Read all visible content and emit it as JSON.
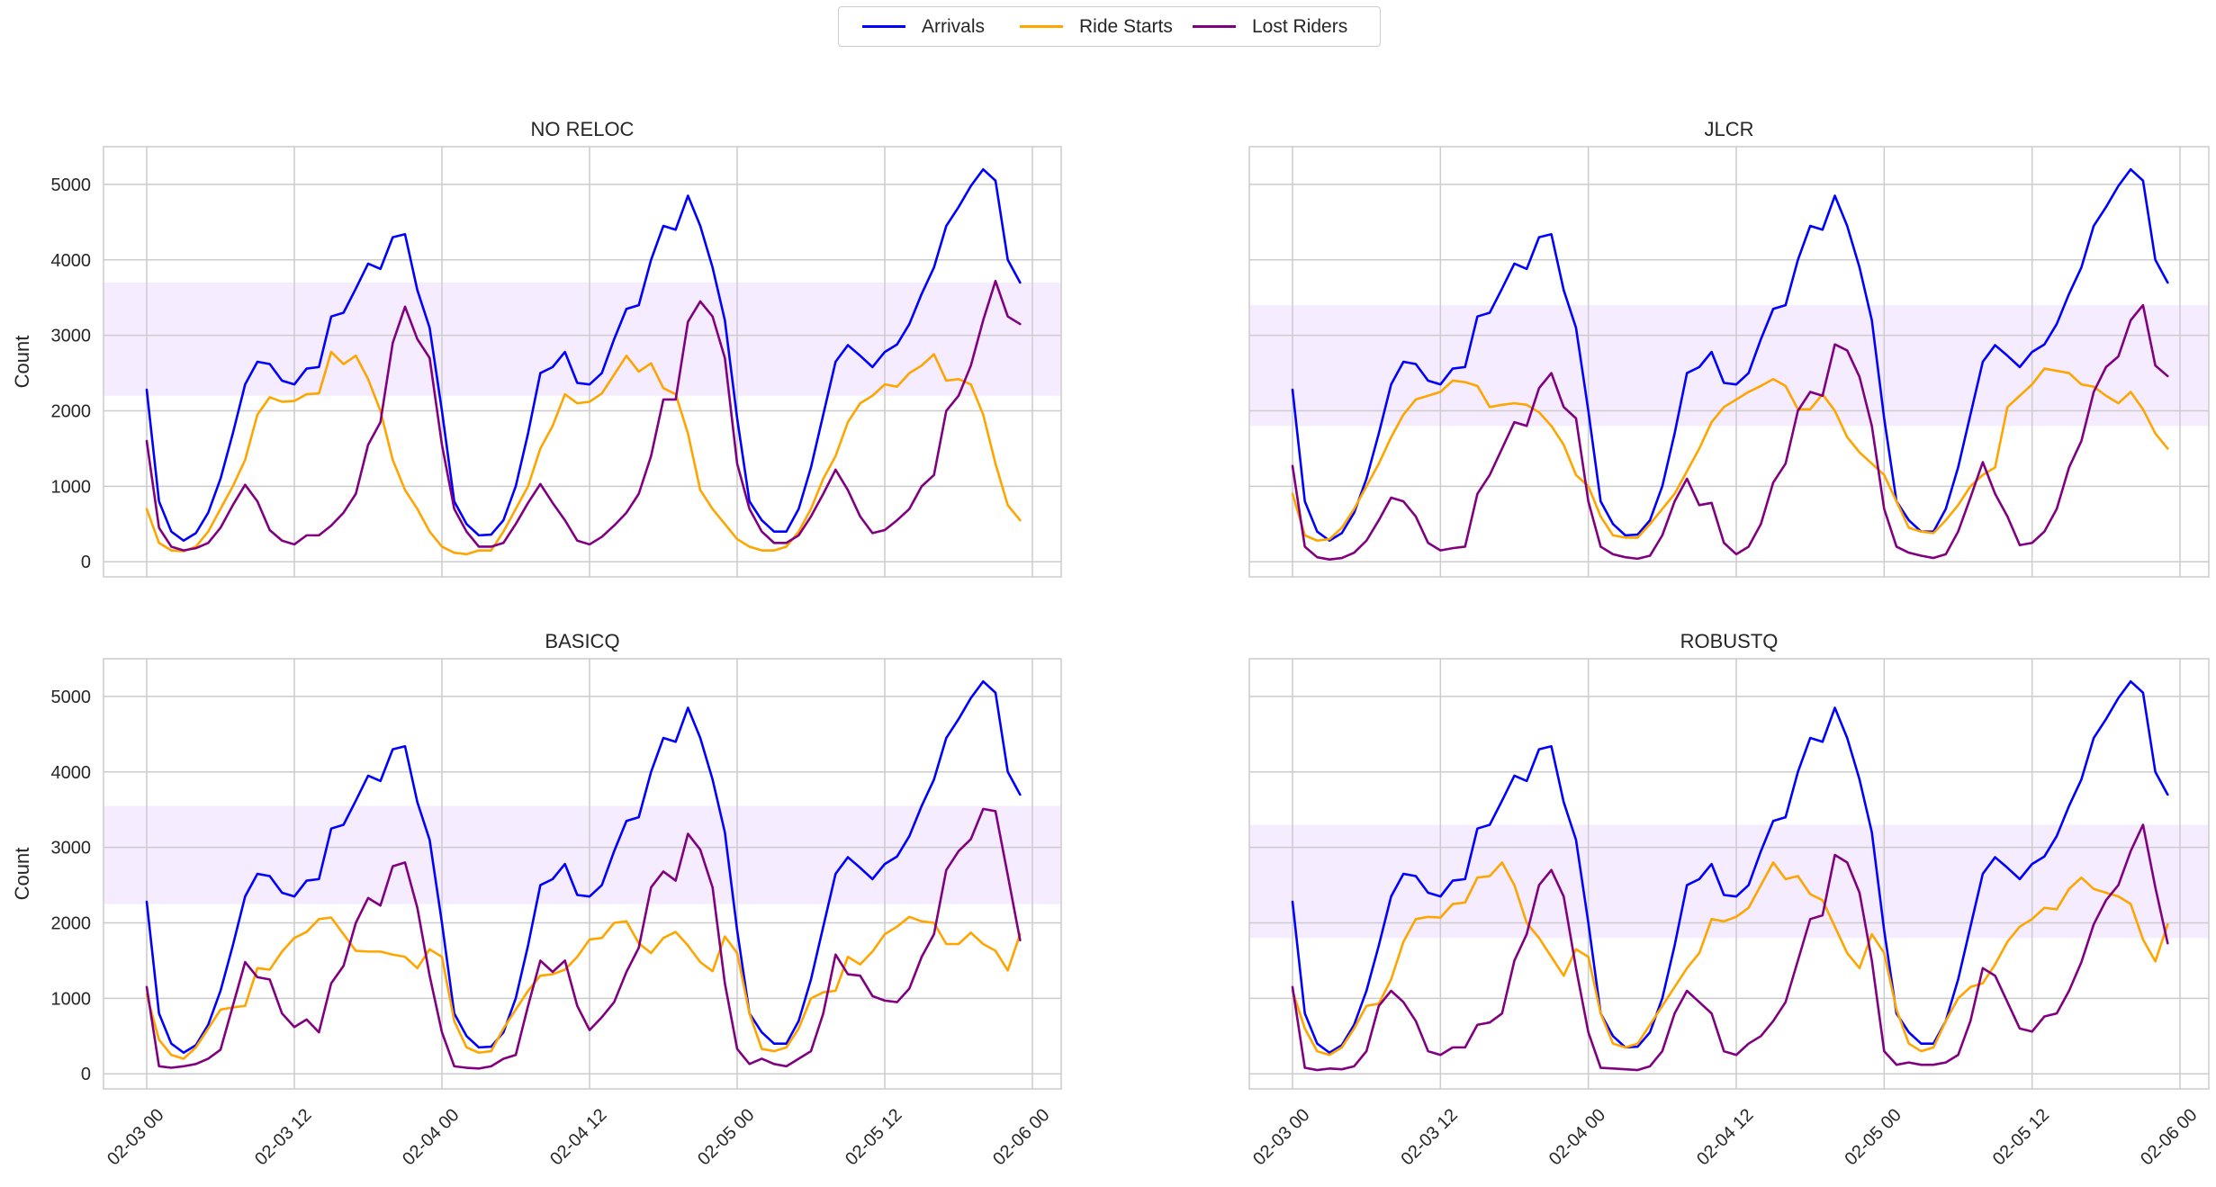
{
  "legend": {
    "placement": "top-center",
    "items": [
      {
        "label": "Arrivals",
        "color": "#0000ff"
      },
      {
        "label": "Ride Starts",
        "color": "#ffa500"
      },
      {
        "label": "Lost Riders",
        "color": "#800080"
      }
    ]
  },
  "highlight_color": "#f3e5ff",
  "chart_data": [
    {
      "type": "line",
      "title": "NO RELOC",
      "xlabel": "",
      "ylabel": "Count",
      "ylim": [
        -200,
        5500
      ],
      "yticks": [
        0,
        1000,
        2000,
        3000,
        4000,
        5000
      ],
      "xticks": [
        "02-03 00",
        "02-03 12",
        "02-04 00",
        "02-04 12",
        "02-05 00",
        "02-05 12",
        "02-06 00"
      ],
      "grid": true,
      "highlight_band": [
        2200,
        3700
      ],
      "series": [
        {
          "name": "Arrivals",
          "color": "#0000ff",
          "values": [
            2280,
            800,
            400,
            280,
            380,
            650,
            1100,
            1700,
            2350,
            2650,
            2620,
            2400,
            2350,
            2560,
            2580,
            3250,
            3300,
            3620,
            3950,
            3880,
            4300,
            4340,
            3600,
            3100,
            2000,
            800,
            500,
            350,
            360,
            550,
            1000,
            1700,
            2500,
            2580,
            2780,
            2370,
            2350,
            2500,
            2950,
            3350,
            3400,
            4000,
            4450,
            4400,
            4850,
            4450,
            3900,
            3200,
            1900,
            800,
            550,
            400,
            400,
            700,
            1250,
            1950,
            2650,
            2870,
            2730,
            2580,
            2780,
            2880,
            3150,
            3550,
            3900,
            4450,
            4700,
            4980,
            5200,
            5050,
            4000,
            3700
          ]
        },
        {
          "name": "Ride Starts",
          "color": "#ffa500",
          "values": [
            700,
            250,
            150,
            140,
            200,
            400,
            700,
            1000,
            1350,
            1950,
            2180,
            2120,
            2130,
            2220,
            2230,
            2780,
            2620,
            2730,
            2420,
            2000,
            1350,
            950,
            700,
            400,
            200,
            120,
            100,
            150,
            150,
            400,
            700,
            1000,
            1500,
            1800,
            2220,
            2100,
            2120,
            2230,
            2480,
            2730,
            2520,
            2630,
            2300,
            2220,
            1700,
            950,
            700,
            500,
            300,
            200,
            150,
            150,
            200,
            400,
            700,
            1100,
            1400,
            1850,
            2100,
            2200,
            2350,
            2320,
            2500,
            2600,
            2750,
            2400,
            2420,
            2350,
            1950,
            1300,
            750,
            550
          ]
        },
        {
          "name": "Lost Riders",
          "color": "#800080",
          "values": [
            1600,
            450,
            200,
            150,
            180,
            250,
            450,
            750,
            1020,
            800,
            420,
            280,
            230,
            350,
            350,
            480,
            650,
            900,
            1550,
            1850,
            2900,
            3380,
            2950,
            2700,
            1550,
            700,
            400,
            200,
            200,
            250,
            500,
            780,
            1030,
            780,
            550,
            280,
            230,
            330,
            480,
            650,
            900,
            1400,
            2150,
            2150,
            3180,
            3450,
            3250,
            2700,
            1300,
            700,
            400,
            250,
            250,
            350,
            600,
            900,
            1220,
            950,
            600,
            380,
            420,
            550,
            700,
            1000,
            1150,
            2000,
            2200,
            2600,
            3200,
            3720,
            3250,
            3150
          ]
        }
      ]
    },
    {
      "type": "line",
      "title": "JLCR",
      "xlabel": "",
      "ylabel": "",
      "ylim": [
        -200,
        5500
      ],
      "yticks": [
        0,
        1000,
        2000,
        3000,
        4000,
        5000
      ],
      "xticks": [
        "02-03 00",
        "02-03 12",
        "02-04 00",
        "02-04 12",
        "02-05 00",
        "02-05 12",
        "02-06 00"
      ],
      "grid": true,
      "highlight_band": [
        1800,
        3400
      ],
      "series": [
        {
          "name": "Arrivals",
          "color": "#0000ff",
          "values": [
            2280,
            800,
            400,
            280,
            380,
            650,
            1100,
            1700,
            2350,
            2650,
            2620,
            2400,
            2350,
            2560,
            2580,
            3250,
            3300,
            3620,
            3950,
            3880,
            4300,
            4340,
            3600,
            3100,
            2000,
            800,
            500,
            350,
            360,
            550,
            1000,
            1700,
            2500,
            2580,
            2780,
            2370,
            2350,
            2500,
            2950,
            3350,
            3400,
            4000,
            4450,
            4400,
            4850,
            4450,
            3900,
            3200,
            1900,
            800,
            550,
            400,
            400,
            700,
            1250,
            1950,
            2650,
            2870,
            2730,
            2580,
            2780,
            2880,
            3150,
            3550,
            3900,
            4450,
            4700,
            4980,
            5200,
            5050,
            4000,
            3700
          ]
        },
        {
          "name": "Ride Starts",
          "color": "#ffa500",
          "values": [
            900,
            350,
            280,
            300,
            450,
            700,
            1000,
            1300,
            1650,
            1950,
            2150,
            2200,
            2250,
            2400,
            2380,
            2330,
            2050,
            2080,
            2100,
            2080,
            1980,
            1800,
            1550,
            1150,
            1000,
            600,
            350,
            320,
            320,
            500,
            700,
            900,
            1200,
            1500,
            1850,
            2050,
            2150,
            2250,
            2330,
            2420,
            2330,
            2020,
            2020,
            2220,
            2000,
            1650,
            1450,
            1300,
            1150,
            800,
            450,
            400,
            380,
            550,
            750,
            1000,
            1150,
            1250,
            2050,
            2200,
            2350,
            2560,
            2530,
            2500,
            2350,
            2320,
            2200,
            2100,
            2250,
            2020,
            1700,
            1500
          ]
        },
        {
          "name": "Lost Riders",
          "color": "#800080",
          "values": [
            1270,
            200,
            60,
            30,
            50,
            120,
            280,
            550,
            850,
            800,
            600,
            250,
            150,
            180,
            200,
            900,
            1150,
            1500,
            1850,
            1800,
            2300,
            2500,
            2050,
            1900,
            800,
            200,
            100,
            60,
            40,
            80,
            350,
            800,
            1100,
            750,
            780,
            250,
            100,
            200,
            500,
            1050,
            1300,
            2000,
            2250,
            2200,
            2880,
            2800,
            2450,
            1800,
            700,
            200,
            120,
            80,
            50,
            100,
            400,
            850,
            1320,
            900,
            600,
            220,
            250,
            400,
            700,
            1250,
            1600,
            2250,
            2580,
            2720,
            3200,
            3400,
            2600,
            2460
          ]
        }
      ]
    },
    {
      "type": "line",
      "title": "BASICQ",
      "xlabel": "",
      "ylabel": "Count",
      "ylim": [
        -200,
        5500
      ],
      "yticks": [
        0,
        1000,
        2000,
        3000,
        4000,
        5000
      ],
      "xticks": [
        "02-03 00",
        "02-03 12",
        "02-04 00",
        "02-04 12",
        "02-05 00",
        "02-05 12",
        "02-06 00"
      ],
      "grid": true,
      "highlight_band": [
        2250,
        3550
      ],
      "series": [
        {
          "name": "Arrivals",
          "color": "#0000ff",
          "values": [
            2280,
            800,
            400,
            280,
            380,
            650,
            1100,
            1700,
            2350,
            2650,
            2620,
            2400,
            2350,
            2560,
            2580,
            3250,
            3300,
            3620,
            3950,
            3880,
            4300,
            4340,
            3600,
            3100,
            2000,
            800,
            500,
            350,
            360,
            550,
            1000,
            1700,
            2500,
            2580,
            2780,
            2370,
            2350,
            2500,
            2950,
            3350,
            3400,
            4000,
            4450,
            4400,
            4850,
            4450,
            3900,
            3200,
            1900,
            800,
            550,
            400,
            400,
            700,
            1250,
            1950,
            2650,
            2870,
            2730,
            2580,
            2780,
            2880,
            3150,
            3550,
            3900,
            4450,
            4700,
            4980,
            5200,
            5050,
            4000,
            3700
          ]
        },
        {
          "name": "Ride Starts",
          "color": "#ffa500",
          "values": [
            1050,
            450,
            250,
            200,
            350,
            600,
            850,
            880,
            900,
            1400,
            1380,
            1620,
            1800,
            1880,
            2050,
            2070,
            1850,
            1630,
            1620,
            1620,
            1580,
            1550,
            1400,
            1650,
            1550,
            700,
            350,
            280,
            300,
            600,
            850,
            1100,
            1300,
            1320,
            1380,
            1550,
            1780,
            1800,
            2000,
            2020,
            1730,
            1600,
            1800,
            1880,
            1700,
            1480,
            1360,
            1820,
            1600,
            800,
            330,
            300,
            350,
            600,
            1000,
            1080,
            1100,
            1550,
            1450,
            1620,
            1850,
            1950,
            2080,
            2020,
            2000,
            1720,
            1720,
            1870,
            1720,
            1630,
            1370,
            1850
          ]
        },
        {
          "name": "Lost Riders",
          "color": "#800080",
          "values": [
            1150,
            100,
            80,
            100,
            130,
            200,
            320,
            900,
            1480,
            1280,
            1250,
            800,
            620,
            720,
            550,
            1200,
            1430,
            2000,
            2330,
            2230,
            2750,
            2800,
            2200,
            1300,
            550,
            100,
            80,
            70,
            100,
            200,
            250,
            900,
            1500,
            1350,
            1500,
            900,
            580,
            750,
            950,
            1350,
            1670,
            2470,
            2680,
            2560,
            3180,
            2970,
            2470,
            1200,
            330,
            130,
            200,
            130,
            100,
            200,
            300,
            800,
            1580,
            1320,
            1300,
            1030,
            970,
            950,
            1130,
            1550,
            1850,
            2700,
            2950,
            3110,
            3510,
            3480,
            2630,
            1770
          ]
        }
      ]
    },
    {
      "type": "line",
      "title": "ROBUSTQ",
      "xlabel": "",
      "ylabel": "",
      "ylim": [
        -200,
        5500
      ],
      "yticks": [
        0,
        1000,
        2000,
        3000,
        4000,
        5000
      ],
      "xticks": [
        "02-03 00",
        "02-03 12",
        "02-04 00",
        "02-04 12",
        "02-05 00",
        "02-05 12",
        "02-06 00"
      ],
      "grid": true,
      "highlight_band": [
        1800,
        3300
      ],
      "series": [
        {
          "name": "Arrivals",
          "color": "#0000ff",
          "values": [
            2280,
            800,
            400,
            280,
            380,
            650,
            1100,
            1700,
            2350,
            2650,
            2620,
            2400,
            2350,
            2560,
            2580,
            3250,
            3300,
            3620,
            3950,
            3880,
            4300,
            4340,
            3600,
            3100,
            2000,
            800,
            500,
            350,
            360,
            550,
            1000,
            1700,
            2500,
            2580,
            2780,
            2370,
            2350,
            2500,
            2950,
            3350,
            3400,
            4000,
            4450,
            4400,
            4850,
            4450,
            3900,
            3200,
            1900,
            800,
            550,
            400,
            400,
            700,
            1250,
            1950,
            2650,
            2870,
            2730,
            2580,
            2780,
            2880,
            3150,
            3550,
            3900,
            4450,
            4700,
            4980,
            5200,
            5050,
            4000,
            3700
          ]
        },
        {
          "name": "Ride Starts",
          "color": "#ffa500",
          "values": [
            1100,
            600,
            300,
            250,
            350,
            600,
            900,
            930,
            1250,
            1750,
            2050,
            2080,
            2070,
            2250,
            2270,
            2600,
            2620,
            2800,
            2500,
            2000,
            1800,
            1550,
            1300,
            1650,
            1550,
            800,
            400,
            350,
            400,
            650,
            900,
            1150,
            1400,
            1600,
            2050,
            2020,
            2080,
            2200,
            2500,
            2800,
            2580,
            2620,
            2380,
            2300,
            1950,
            1600,
            1400,
            1850,
            1600,
            850,
            400,
            300,
            350,
            700,
            1000,
            1150,
            1200,
            1450,
            1750,
            1950,
            2050,
            2200,
            2180,
            2450,
            2600,
            2450,
            2400,
            2350,
            2250,
            1780,
            1490,
            1980
          ]
        },
        {
          "name": "Lost Riders",
          "color": "#800080",
          "values": [
            1150,
            80,
            50,
            70,
            60,
            100,
            300,
            900,
            1100,
            950,
            700,
            300,
            250,
            350,
            350,
            650,
            680,
            800,
            1500,
            1850,
            2500,
            2700,
            2350,
            1400,
            550,
            80,
            70,
            60,
            50,
            100,
            300,
            800,
            1100,
            950,
            800,
            300,
            250,
            400,
            500,
            700,
            950,
            1500,
            2050,
            2100,
            2900,
            2800,
            2400,
            1500,
            300,
            120,
            150,
            120,
            120,
            150,
            250,
            700,
            1400,
            1300,
            950,
            600,
            560,
            760,
            800,
            1100,
            1480,
            1980,
            2300,
            2500,
            2950,
            3300,
            2470,
            1730
          ]
        }
      ]
    }
  ]
}
